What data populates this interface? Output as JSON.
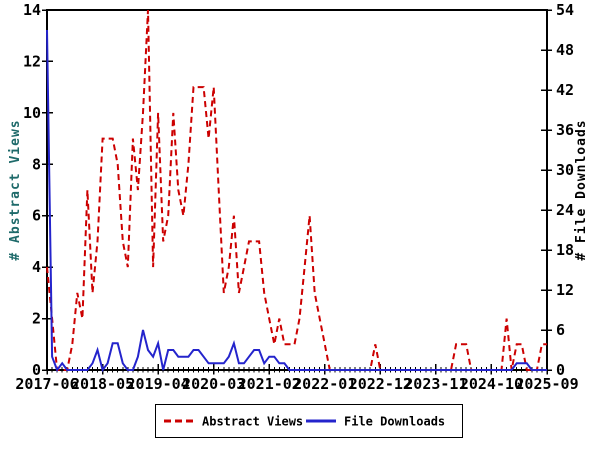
{
  "page": {
    "background": "#ffffff"
  },
  "chart_data": {
    "type": "line",
    "title": "",
    "n_points": 100,
    "x_start": "2017-06",
    "x_end": "2025-09",
    "x_tick_labels": [
      "2017-06",
      "2018-05",
      "2019-04",
      "2020-03",
      "2021-02",
      "2022-01",
      "2022-12",
      "2023-11",
      "2024-10",
      "2025-09"
    ],
    "x_tick_month_indices": [
      0,
      11,
      22,
      33,
      44,
      55,
      66,
      77,
      88,
      99
    ],
    "grid": "off",
    "left_axis": {
      "label": "# Abstract Views",
      "min": 0,
      "max": 14,
      "ticks": [
        0,
        2,
        4,
        6,
        8,
        10,
        12,
        14
      ],
      "color": "#1e6a6a"
    },
    "right_axis": {
      "label": "# File Downloads",
      "min": 0,
      "max": 54,
      "ticks": [
        0,
        6,
        12,
        18,
        24,
        30,
        36,
        42,
        48,
        54
      ],
      "color": "#000000"
    },
    "series": [
      {
        "name": "Abstract Views",
        "axis": "left",
        "style": "dashed",
        "color": "#cc0000",
        "values": [
          4,
          2,
          0,
          0,
          0,
          1,
          3,
          2,
          7,
          3,
          5,
          9,
          9,
          9,
          8,
          5,
          4,
          9,
          7,
          10,
          14,
          4,
          10,
          5,
          6,
          10,
          7,
          6,
          8,
          11,
          11,
          11,
          9,
          11,
          7,
          3,
          4,
          6,
          3,
          4,
          5,
          5,
          5,
          3,
          2,
          1,
          2,
          1,
          1,
          1,
          2,
          4,
          6,
          3,
          2,
          1,
          0,
          0,
          0,
          0,
          0,
          0,
          0,
          0,
          0,
          1,
          0,
          0,
          0,
          0,
          0,
          0,
          0,
          0,
          0,
          0,
          0,
          0,
          0,
          0,
          0,
          1,
          1,
          1,
          0,
          0,
          0,
          0,
          0,
          0,
          0,
          2,
          0,
          1,
          1,
          0,
          0,
          0,
          1,
          1
        ]
      },
      {
        "name": "File Downloads",
        "axis": "right",
        "style": "solid",
        "color": "#2424cc",
        "values": [
          51,
          2,
          0,
          1,
          0,
          0,
          0,
          0,
          0,
          1,
          3,
          0,
          1,
          4,
          4,
          1,
          0,
          0,
          2,
          6,
          3,
          2,
          4,
          0,
          3,
          3,
          2,
          2,
          2,
          3,
          3,
          2,
          1,
          1,
          1,
          1,
          2,
          4,
          1,
          1,
          2,
          3,
          3,
          1,
          2,
          2,
          1,
          1,
          0,
          0,
          0,
          0,
          0,
          0,
          0,
          0,
          0,
          0,
          0,
          0,
          0,
          0,
          0,
          0,
          0,
          0,
          0,
          0,
          0,
          0,
          0,
          0,
          0,
          0,
          0,
          0,
          0,
          0,
          0,
          0,
          0,
          0,
          0,
          0,
          0,
          0,
          0,
          0,
          0,
          0,
          0,
          0,
          0,
          1,
          1,
          1,
          0,
          0,
          0,
          0
        ]
      }
    ],
    "legend": {
      "position": "bottom-center",
      "entries": [
        "Abstract Views",
        "File Downloads"
      ]
    }
  }
}
